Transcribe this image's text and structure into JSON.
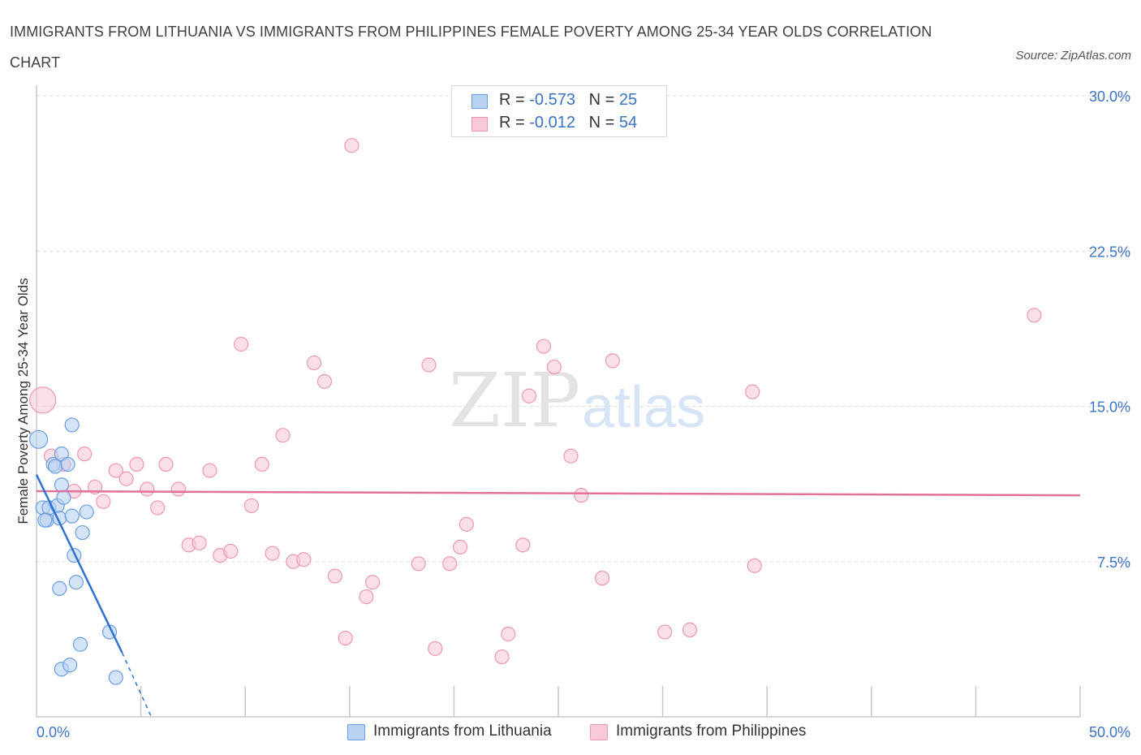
{
  "title": "IMMIGRANTS FROM LITHUANIA VS IMMIGRANTS FROM PHILIPPINES FEMALE POVERTY AMONG 25-34 YEAR OLDS CORRELATION CHART",
  "source": "Source: ZipAtlas.com",
  "watermark": {
    "zip": "ZIP",
    "atlas": "atlas"
  },
  "legend": {
    "r_label": "R =",
    "n_label": "N =",
    "rows": [
      {
        "r": "-0.573",
        "n": "25",
        "fill": "#b8d2f3",
        "stroke": "#6b9ee0"
      },
      {
        "r": "-0.012",
        "n": "54",
        "fill": "#f9c9d7",
        "stroke": "#ec97b2"
      }
    ]
  },
  "bottom_legend": [
    {
      "label": "Immigrants from Lithuania",
      "fill": "#b8d2f3",
      "stroke": "#6b9ee0"
    },
    {
      "label": "Immigrants from Philippines",
      "fill": "#f9c9d7",
      "stroke": "#ec97b2"
    }
  ],
  "colors": {
    "blue_line": "#2f72d1",
    "pink_line": "#e2719a",
    "blue_point_fill": "#b8d2f3",
    "blue_point_stroke": "#6b9ee0",
    "pink_point_fill": "#f9c9d7",
    "pink_point_stroke": "#ec97b2",
    "tick_text": "#3a73c4",
    "grid": "#dddddd"
  },
  "chart_data": {
    "type": "scatter",
    "title": "IMMIGRANTS FROM LITHUANIA VS IMMIGRANTS FROM PHILIPPINES FEMALE POVERTY AMONG 25-34 YEAR OLDS CORRELATION CHART",
    "xlabel": "",
    "ylabel": "Female Poverty Among 25-34 Year Olds",
    "xlim": [
      0,
      50
    ],
    "ylim": [
      0,
      30
    ],
    "x_tick_labels": [
      "0.0%",
      "50.0%"
    ],
    "y_ticks": [
      7.5,
      15.0,
      22.5,
      30.0
    ],
    "y_tick_labels": [
      "7.5%",
      "15.0%",
      "22.5%",
      "30.0%"
    ],
    "grid": true,
    "series": [
      {
        "name": "Immigrants from Lithuania",
        "R": -0.573,
        "N": 25,
        "trend": {
          "x0": 0.0,
          "y0": 11.7,
          "x1": 4.1,
          "y1": 3.1,
          "dash_x1": 5.5,
          "dash_y1": 0.0
        },
        "points": [
          {
            "x": 0.1,
            "y": 13.4,
            "big": true
          },
          {
            "x": 0.3,
            "y": 10.1
          },
          {
            "x": 0.5,
            "y": 9.5
          },
          {
            "x": 0.6,
            "y": 10.1
          },
          {
            "x": 0.8,
            "y": 12.2
          },
          {
            "x": 0.9,
            "y": 12.1
          },
          {
            "x": 1.0,
            "y": 10.2
          },
          {
            "x": 1.1,
            "y": 9.6
          },
          {
            "x": 1.1,
            "y": 6.2
          },
          {
            "x": 1.2,
            "y": 2.3
          },
          {
            "x": 1.2,
            "y": 12.7
          },
          {
            "x": 1.2,
            "y": 11.2
          },
          {
            "x": 1.3,
            "y": 10.6
          },
          {
            "x": 1.5,
            "y": 12.2
          },
          {
            "x": 1.6,
            "y": 2.5
          },
          {
            "x": 1.7,
            "y": 14.1
          },
          {
            "x": 1.7,
            "y": 9.7
          },
          {
            "x": 1.8,
            "y": 7.8
          },
          {
            "x": 1.9,
            "y": 6.5
          },
          {
            "x": 2.1,
            "y": 3.5
          },
          {
            "x": 2.2,
            "y": 8.9
          },
          {
            "x": 2.4,
            "y": 9.9
          },
          {
            "x": 3.5,
            "y": 4.1
          },
          {
            "x": 3.8,
            "y": 1.9
          },
          {
            "x": 0.4,
            "y": 9.5
          }
        ]
      },
      {
        "name": "Immigrants from Philippines",
        "R": -0.012,
        "N": 54,
        "trend": {
          "x0": 0.0,
          "y0": 10.9,
          "x1": 50.0,
          "y1": 10.7
        },
        "points": [
          {
            "x": 0.3,
            "y": 15.3,
            "big": true
          },
          {
            "x": 0.7,
            "y": 12.6
          },
          {
            "x": 1.3,
            "y": 12.2
          },
          {
            "x": 1.8,
            "y": 10.9
          },
          {
            "x": 2.3,
            "y": 12.7
          },
          {
            "x": 2.8,
            "y": 11.1
          },
          {
            "x": 3.2,
            "y": 10.4
          },
          {
            "x": 3.8,
            "y": 11.9
          },
          {
            "x": 4.3,
            "y": 11.5
          },
          {
            "x": 4.8,
            "y": 12.2
          },
          {
            "x": 5.3,
            "y": 11.0
          },
          {
            "x": 5.8,
            "y": 10.1
          },
          {
            "x": 6.2,
            "y": 12.2
          },
          {
            "x": 6.8,
            "y": 11.0
          },
          {
            "x": 7.3,
            "y": 8.3
          },
          {
            "x": 7.8,
            "y": 8.4
          },
          {
            "x": 8.3,
            "y": 11.9
          },
          {
            "x": 8.8,
            "y": 7.8
          },
          {
            "x": 9.3,
            "y": 8.0
          },
          {
            "x": 9.8,
            "y": 18.0
          },
          {
            "x": 10.3,
            "y": 10.2
          },
          {
            "x": 10.8,
            "y": 12.2
          },
          {
            "x": 11.3,
            "y": 7.9
          },
          {
            "x": 11.8,
            "y": 13.6
          },
          {
            "x": 12.3,
            "y": 7.5
          },
          {
            "x": 12.8,
            "y": 7.6
          },
          {
            "x": 13.3,
            "y": 17.1
          },
          {
            "x": 13.8,
            "y": 16.2
          },
          {
            "x": 14.3,
            "y": 6.8
          },
          {
            "x": 14.8,
            "y": 3.8
          },
          {
            "x": 15.1,
            "y": 27.6
          },
          {
            "x": 15.8,
            "y": 5.8
          },
          {
            "x": 16.1,
            "y": 6.5
          },
          {
            "x": 18.3,
            "y": 7.4
          },
          {
            "x": 18.8,
            "y": 17.0
          },
          {
            "x": 19.1,
            "y": 3.3
          },
          {
            "x": 19.8,
            "y": 7.4
          },
          {
            "x": 20.3,
            "y": 8.2
          },
          {
            "x": 20.6,
            "y": 9.3
          },
          {
            "x": 22.3,
            "y": 2.9
          },
          {
            "x": 22.6,
            "y": 4.0
          },
          {
            "x": 23.3,
            "y": 8.3
          },
          {
            "x": 23.6,
            "y": 15.5
          },
          {
            "x": 24.3,
            "y": 17.9
          },
          {
            "x": 24.8,
            "y": 16.9
          },
          {
            "x": 25.6,
            "y": 12.6
          },
          {
            "x": 26.1,
            "y": 10.7
          },
          {
            "x": 27.1,
            "y": 6.7
          },
          {
            "x": 27.6,
            "y": 17.2
          },
          {
            "x": 30.1,
            "y": 4.1
          },
          {
            "x": 31.3,
            "y": 4.2
          },
          {
            "x": 34.3,
            "y": 15.7
          },
          {
            "x": 34.4,
            "y": 7.3
          },
          {
            "x": 47.8,
            "y": 19.4
          }
        ]
      }
    ]
  }
}
